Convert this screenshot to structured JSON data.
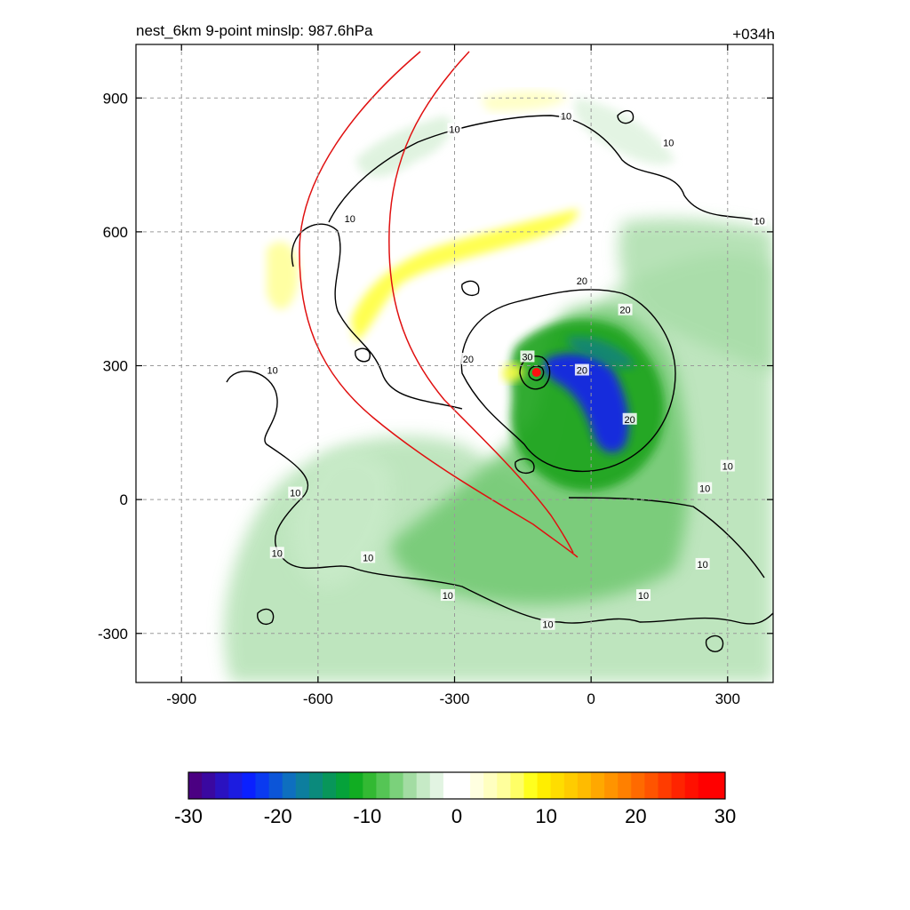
{
  "chart_data": {
    "type": "heatmap",
    "title": "nest_6km  9-point minslp: 987.6hPa",
    "forecast_hour": "+034h",
    "xlabel": "",
    "ylabel": "",
    "xlim": [
      -1000,
      400
    ],
    "ylim": [
      -410,
      1020
    ],
    "x_ticks": [
      -900,
      -600,
      -300,
      0,
      300
    ],
    "y_ticks": [
      900,
      600,
      300,
      0,
      -300
    ],
    "x_tick_labels": [
      "-900",
      "-600",
      "-300",
      "0",
      "300"
    ],
    "y_tick_labels": [
      "900",
      "600",
      "300",
      "0",
      "-300"
    ],
    "grid": true,
    "storm_center": {
      "x": -120,
      "y": 285
    },
    "colorbar": {
      "range": [
        -30,
        30
      ],
      "ticks": [
        -30,
        -20,
        -10,
        0,
        10,
        20,
        30
      ],
      "tick_labels": [
        "-30",
        "-20",
        "-10",
        "0",
        "10",
        "20",
        "30"
      ],
      "colors": [
        "#4b0082",
        "#3a08a0",
        "#2a12c0",
        "#1c1ce0",
        "#0a20ff",
        "#0a3af0",
        "#0c55d8",
        "#0e6fbf",
        "#0d7e9e",
        "#0b8a7c",
        "#08965a",
        "#05a23a",
        "#11ad22",
        "#33b933",
        "#55c555",
        "#7bd17b",
        "#a3dca3",
        "#c6eac6",
        "#e2f4e2",
        "#ffffff",
        "#ffffff",
        "#ffffe0",
        "#ffffc0",
        "#ffff9c",
        "#ffff66",
        "#ffff1e",
        "#ffee00",
        "#ffdd00",
        "#ffcc00",
        "#ffbb00",
        "#ffa800",
        "#ff9400",
        "#ff8000",
        "#ff6a00",
        "#ff5400",
        "#ff3c00",
        "#ff2400",
        "#ff1000",
        "#ff0000",
        "#ff0000"
      ]
    },
    "contour_levels": [
      10,
      20,
      30
    ],
    "contour_labels": [
      {
        "text": "10",
        "x": -700,
        "y": 290
      },
      {
        "text": "10",
        "x": -650,
        "y": 15
      },
      {
        "text": "10",
        "x": -690,
        "y": -120
      },
      {
        "text": "10",
        "x": -530,
        "y": 630
      },
      {
        "text": "10",
        "x": -300,
        "y": 830
      },
      {
        "text": "10",
        "x": -55,
        "y": 860
      },
      {
        "text": "10",
        "x": 170,
        "y": 800
      },
      {
        "text": "10",
        "x": 370,
        "y": 625
      },
      {
        "text": "10",
        "x": -490,
        "y": -130
      },
      {
        "text": "10",
        "x": -315,
        "y": -215
      },
      {
        "text": "10",
        "x": -95,
        "y": -280
      },
      {
        "text": "10",
        "x": 115,
        "y": -215
      },
      {
        "text": "10",
        "x": 245,
        "y": -145
      },
      {
        "text": "10",
        "x": 250,
        "y": 25
      },
      {
        "text": "10",
        "x": 300,
        "y": 75
      },
      {
        "text": "20",
        "x": -270,
        "y": 315
      },
      {
        "text": "20",
        "x": -20,
        "y": 490
      },
      {
        "text": "20",
        "x": 75,
        "y": 425
      },
      {
        "text": "20",
        "x": 85,
        "y": 180
      },
      {
        "text": "20",
        "x": -20,
        "y": 290
      },
      {
        "text": "30",
        "x": -140,
        "y": 320
      }
    ]
  }
}
